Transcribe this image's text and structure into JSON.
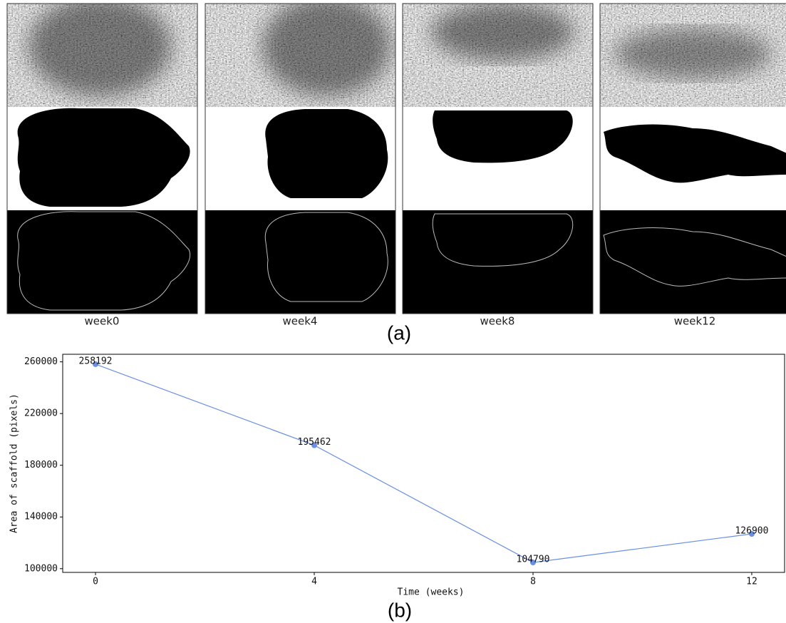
{
  "figure_a": {
    "labels": [
      "week0",
      "week4",
      "week8",
      "week12"
    ],
    "caption": "(a)"
  },
  "chart_data": {
    "type": "line",
    "caption": "(b)",
    "x": [
      0,
      4,
      8,
      12
    ],
    "xlabel": "Time (weeks)",
    "ylabel": "Area of scaffold (pixels)",
    "series": [
      {
        "name": "area",
        "color": "#6a8fe3",
        "values": [
          258192,
          195462,
          104790,
          126900
        ]
      }
    ],
    "xlim": [
      -0.6,
      12.6
    ],
    "xticks": [
      0,
      4,
      8,
      12
    ],
    "ylim": [
      97120,
      265862
    ],
    "yticks": [
      100000,
      140000,
      180000,
      220000,
      260000
    ]
  }
}
